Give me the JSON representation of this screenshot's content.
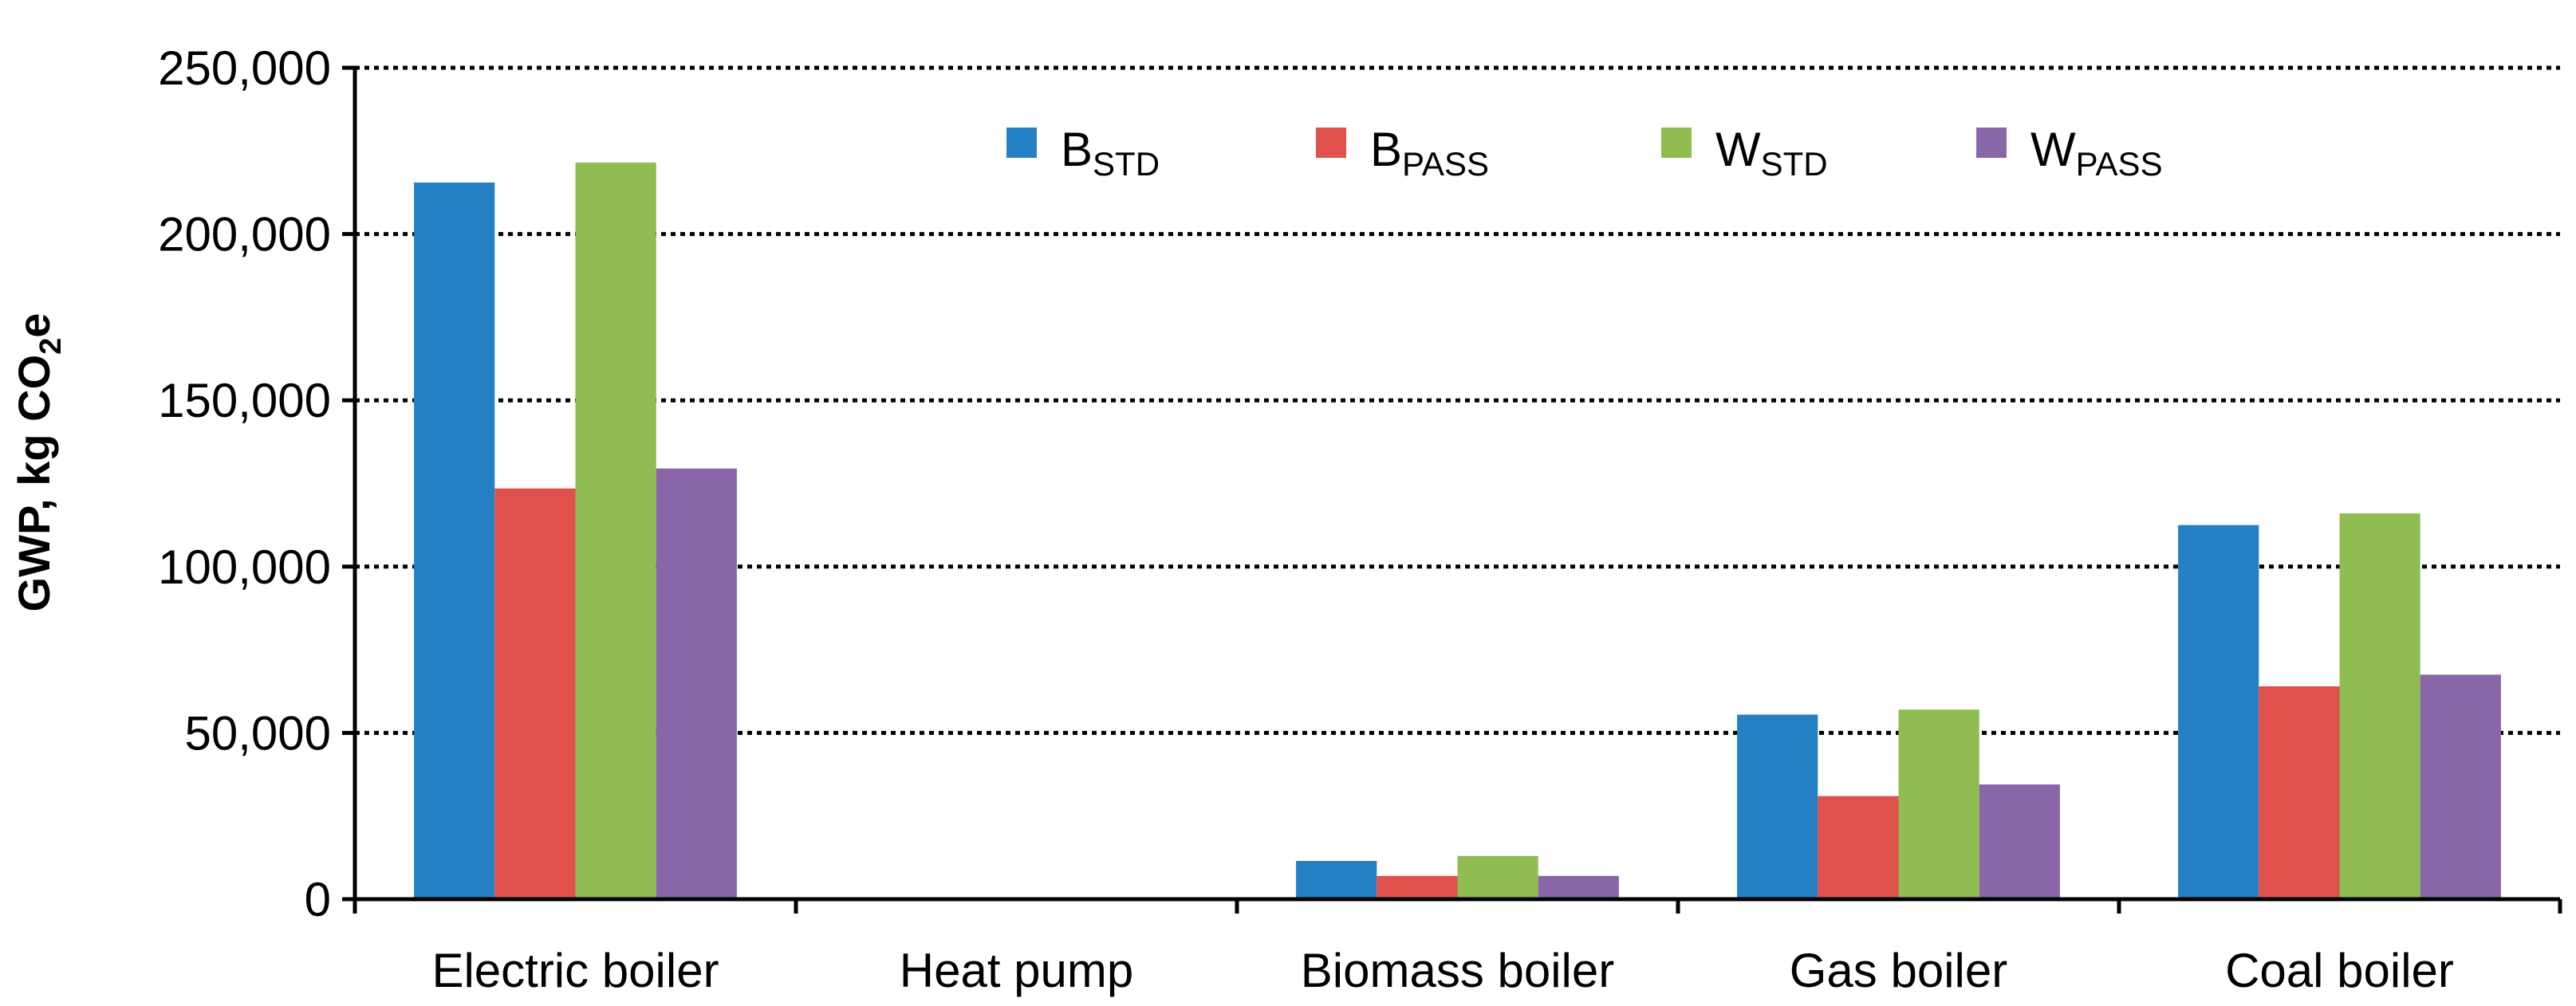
{
  "chart_data": {
    "type": "bar",
    "title": "",
    "xlabel": "",
    "ylabel": {
      "main": "GWP, kg CO",
      "sub": "2",
      "tail": "e"
    },
    "ylim": [
      0,
      250000
    ],
    "yticks": [
      0,
      50000,
      100000,
      150000,
      200000,
      250000
    ],
    "ytick_labels": [
      "0",
      "50,000",
      "100,000",
      "150,000",
      "200,000",
      "250,000"
    ],
    "grid": "horizontal dotted",
    "legend_position": "top-center",
    "categories": [
      "Electric boiler",
      "Heat pump",
      "Biomass boiler",
      "Gas boiler",
      "Coal boiler"
    ],
    "series": [
      {
        "name": {
          "base": "B",
          "sub": "STD"
        },
        "color": "#2580c3",
        "values": [
          215500,
          0,
          11500,
          55500,
          112500
        ]
      },
      {
        "name": {
          "base": "B",
          "sub": "PASS"
        },
        "color": "#e0504d",
        "values": [
          123500,
          0,
          7000,
          31000,
          64000
        ]
      },
      {
        "name": {
          "base": "W",
          "sub": "STD"
        },
        "color": "#8fbd51",
        "values": [
          221500,
          0,
          13000,
          57000,
          116000
        ]
      },
      {
        "name": {
          "base": "W",
          "sub": "PASS"
        },
        "color": "#8866a8",
        "values": [
          129500,
          0,
          7000,
          34500,
          67500
        ]
      }
    ]
  }
}
